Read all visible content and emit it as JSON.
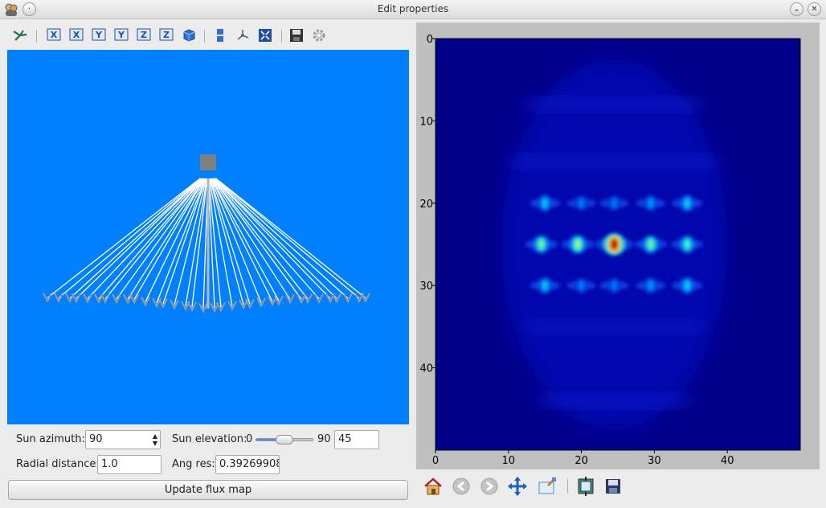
{
  "window": {
    "title": "Edit properties",
    "buttons": [
      "minimize-icon",
      "close-icon"
    ]
  },
  "toolbar": {
    "tools": [
      {
        "name": "pick-tool-icon"
      },
      {
        "name": "view-x-icon",
        "label": "X"
      },
      {
        "name": "view-neg-x-icon",
        "label": "X"
      },
      {
        "name": "view-y-icon",
        "label": "Y"
      },
      {
        "name": "view-neg-y-icon",
        "label": "Y"
      },
      {
        "name": "view-z-icon",
        "label": "Z"
      },
      {
        "name": "view-neg-z-icon",
        "label": "Z"
      },
      {
        "name": "cube-view-icon"
      },
      {
        "name": "split-view-icon"
      },
      {
        "name": "axes-icon"
      },
      {
        "name": "fit-all-icon"
      },
      {
        "name": "save-icon"
      },
      {
        "name": "settings-icon"
      }
    ]
  },
  "scene": {
    "background_color": "#0080ff",
    "ray_color": "#ffffff",
    "receiver_color": "#808080"
  },
  "controls": {
    "sun_azimuth_label": "Sun azimuth:",
    "sun_azimuth_value": "90",
    "sun_elevation_label": "Sun elevation:",
    "slider_min_label": "0",
    "slider_max_label": "90",
    "sun_elevation_value": "45",
    "sun_elevation_fraction": 0.5,
    "radial_distance_label": "Radial distance:",
    "radial_distance_value": "1.0",
    "ang_res_label": "Ang res:",
    "ang_res_value": "0.39269908",
    "update_button": "Update flux map"
  },
  "chart_data": {
    "type": "heatmap",
    "title": "",
    "xlabel": "",
    "ylabel": "",
    "xlim": [
      0,
      50
    ],
    "ylim": [
      0,
      50
    ],
    "x_ticks": [
      "0",
      "10",
      "20",
      "30",
      "40"
    ],
    "y_ticks": [
      "0",
      "10",
      "20",
      "30",
      "40"
    ],
    "background_color": "#00008b",
    "hotspots": [
      {
        "x": 14.5,
        "y": 25,
        "value": 0.55
      },
      {
        "x": 19.5,
        "y": 25,
        "value": 0.6
      },
      {
        "x": 24.5,
        "y": 25,
        "value": 1.0
      },
      {
        "x": 29.5,
        "y": 25,
        "value": 0.55
      },
      {
        "x": 34.5,
        "y": 25,
        "value": 0.5
      },
      {
        "x": 15,
        "y": 20,
        "value": 0.38
      },
      {
        "x": 20,
        "y": 20,
        "value": 0.25
      },
      {
        "x": 24.5,
        "y": 20,
        "value": 0.25
      },
      {
        "x": 29.5,
        "y": 20,
        "value": 0.3
      },
      {
        "x": 34.5,
        "y": 20,
        "value": 0.4
      },
      {
        "x": 15,
        "y": 30,
        "value": 0.38
      },
      {
        "x": 20,
        "y": 30,
        "value": 0.25
      },
      {
        "x": 24.5,
        "y": 30,
        "value": 0.25
      },
      {
        "x": 29.5,
        "y": 30,
        "value": 0.3
      },
      {
        "x": 34.5,
        "y": 30,
        "value": 0.4
      }
    ]
  },
  "plot_toolbar": {
    "tools": [
      "home-icon",
      "back-arrow-icon",
      "forward-arrow-icon",
      "pan-icon",
      "zoom-rect-icon",
      "subplots-icon",
      "save-figure-icon"
    ]
  }
}
